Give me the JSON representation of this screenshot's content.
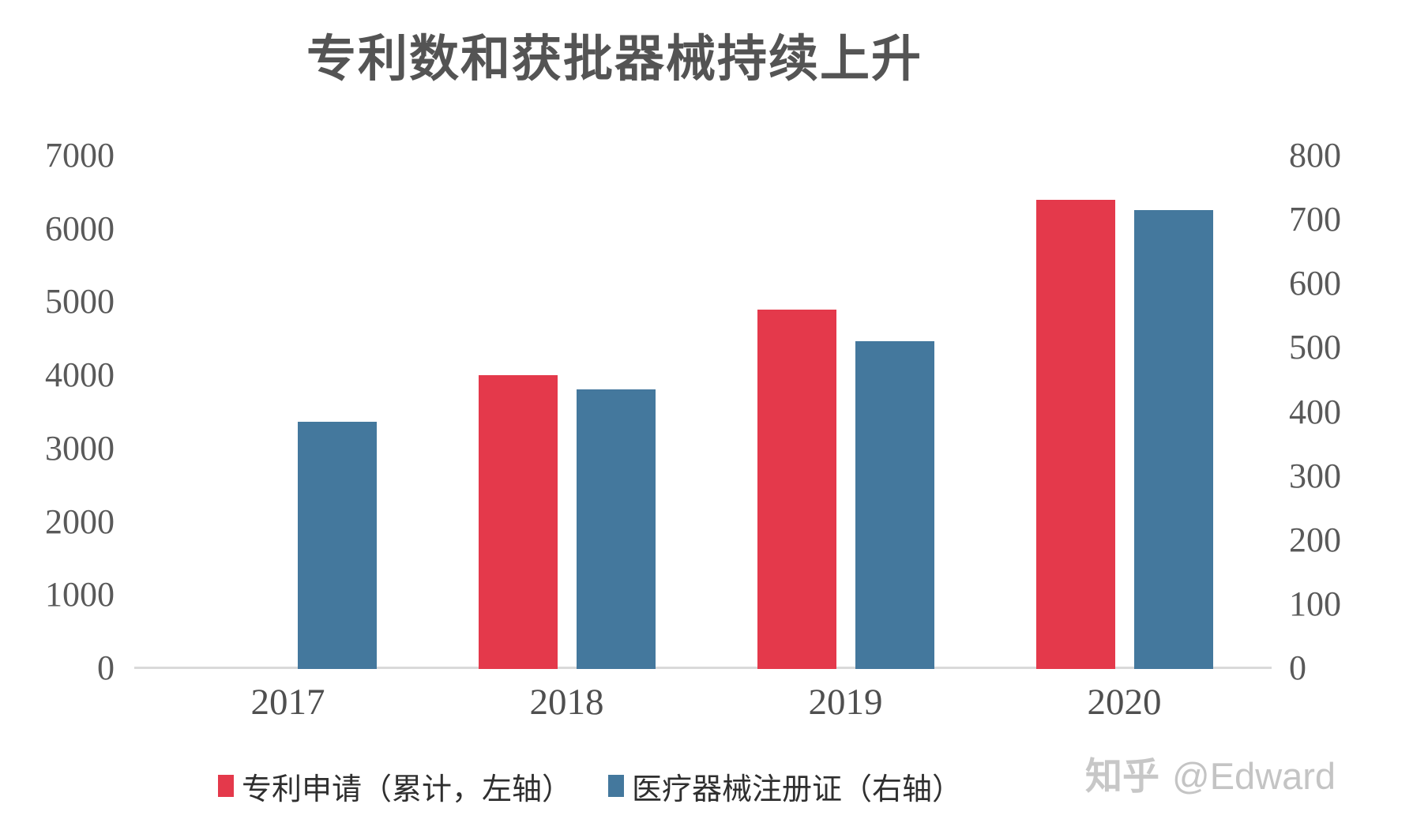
{
  "page": {
    "background": "#ffffff"
  },
  "title": {
    "text": "专利数和获批器械持续上升",
    "color": "#545454"
  },
  "watermark": {
    "brand": "知乎",
    "handle": "@Edward",
    "color": "#c7c7c7"
  },
  "chart_data": {
    "type": "bar",
    "title": "专利数和获批器械持续上升",
    "categories": [
      "2017",
      "2018",
      "2019",
      "2020"
    ],
    "series": [
      {
        "name": "专利申请（累计，左轴）",
        "axis": "left",
        "color": "#e4394b",
        "values": [
          null,
          4000,
          4900,
          6400
        ]
      },
      {
        "name": "医疗器械注册证（右轴）",
        "axis": "right",
        "color": "#44789d",
        "values": [
          385,
          435,
          510,
          715
        ]
      }
    ],
    "left_axis": {
      "min": 0,
      "max": 7000,
      "tick_step": 1000,
      "ticks": [
        0,
        1000,
        2000,
        3000,
        4000,
        5000,
        6000,
        7000
      ]
    },
    "right_axis": {
      "min": 0,
      "max": 800,
      "tick_step": 100,
      "ticks": [
        0,
        100,
        200,
        300,
        400,
        500,
        600,
        700,
        800
      ]
    },
    "xlabel": "",
    "ylabel": "",
    "grid": false,
    "legend_position": "bottom",
    "axis_line_color": "#d9d9d9"
  }
}
